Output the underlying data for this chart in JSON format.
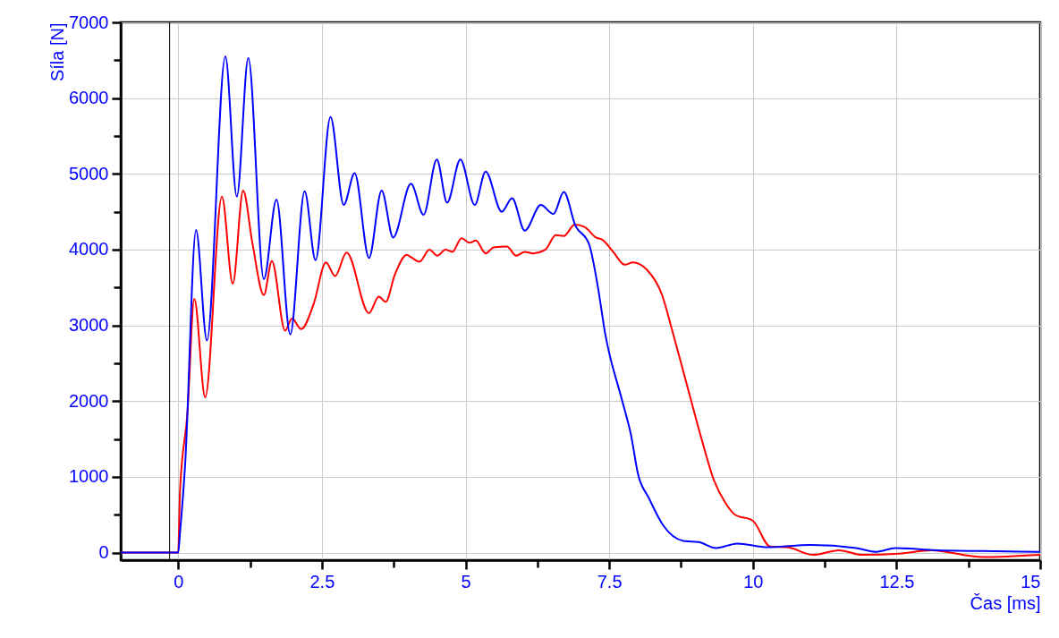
{
  "chart_data": {
    "type": "line",
    "xlabel": "Čas [ms]",
    "ylabel": "Síla [N]",
    "xlim": [
      -1,
      15
    ],
    "ylim": [
      -100,
      7000
    ],
    "xticks": [
      0,
      {
        "value": 1.25,
        "label": null
      },
      2.5,
      {
        "value": 3.75,
        "label": null
      },
      5,
      {
        "value": 6.25,
        "label": null
      },
      7.5,
      {
        "value": 8.75,
        "label": null
      },
      10,
      {
        "value": 11.25,
        "label": null
      },
      12.5,
      {
        "value": 13.75,
        "label": null
      },
      15
    ],
    "yticks": [
      0,
      {
        "value": 500,
        "label": null
      },
      1000,
      {
        "value": 1500,
        "label": null
      },
      2000,
      {
        "value": 2500,
        "label": null
      },
      3000,
      {
        "value": 3500,
        "label": null
      },
      4000,
      {
        "value": 4500,
        "label": null
      },
      5000,
      {
        "value": 5500,
        "label": null
      },
      6000,
      {
        "value": 6500,
        "label": null
      },
      7000
    ],
    "grid": true,
    "legend": false,
    "line_style": "solid",
    "ref_lines": [
      {
        "axis": "x",
        "value": -0.15,
        "color": "#000000"
      }
    ],
    "series": [
      {
        "color": "#ff0000",
        "x": [
          -1,
          0,
          0.03,
          0.16,
          0.28,
          0.47,
          0.76,
          0.95,
          1.13,
          1.29,
          1.49,
          1.63,
          1.86,
          1.98,
          2.14,
          2.36,
          2.57,
          2.73,
          2.93,
          3.32,
          3.49,
          3.61,
          3.77,
          3.98,
          4.05,
          4.2,
          4.37,
          4.51,
          4.65,
          4.77,
          4.93,
          5.07,
          5.18,
          5.35,
          5.49,
          5.72,
          5.88,
          6.03,
          6.17,
          6.39,
          6.57,
          6.71,
          6.9,
          7.07,
          7.27,
          7.38,
          7.57,
          7.77,
          7.91,
          8.16,
          8.42,
          8.59,
          8.85,
          9.1,
          9.32,
          9.52,
          9.69,
          10.0,
          10.3,
          10.6,
          11.05,
          11.5,
          11.9,
          12.6,
          13.1,
          14.0,
          15.0
        ],
        "values": [
          0,
          0,
          790,
          1840,
          3350,
          2050,
          4700,
          3550,
          4780,
          4090,
          3400,
          3850,
          2930,
          3090,
          2950,
          3290,
          3830,
          3650,
          3960,
          3160,
          3380,
          3310,
          3670,
          3930,
          3900,
          3840,
          4000,
          3920,
          4000,
          3970,
          4150,
          4090,
          4120,
          3950,
          4030,
          4040,
          3920,
          3970,
          3950,
          4000,
          4190,
          4180,
          4330,
          4300,
          4160,
          4130,
          3970,
          3800,
          3830,
          3730,
          3400,
          2950,
          2220,
          1520,
          960,
          660,
          500,
          420,
          80,
          70,
          -30,
          30,
          -30,
          -10,
          30,
          -60,
          -30
        ]
      },
      {
        "color": "#0000ff",
        "x": [
          -1,
          0,
          0.03,
          0.12,
          0.31,
          0.5,
          0.82,
          1.02,
          1.22,
          1.49,
          1.71,
          1.95,
          2.2,
          2.39,
          2.65,
          2.88,
          3.07,
          3.32,
          3.54,
          3.74,
          4.05,
          4.27,
          4.5,
          4.68,
          4.91,
          5.16,
          5.35,
          5.63,
          5.81,
          6.03,
          6.31,
          6.53,
          6.71,
          6.91,
          7.15,
          7.3,
          7.43,
          7.72,
          7.88,
          8.0,
          8.19,
          8.43,
          8.82,
          9.05,
          9.36,
          9.73,
          10.26,
          11.0,
          11.8,
          12.15,
          12.48,
          13.2,
          14.0,
          15.0
        ],
        "values": [
          0,
          0,
          250,
          1160,
          4260,
          2800,
          6550,
          4700,
          6530,
          3610,
          4660,
          2880,
          4770,
          3860,
          5750,
          4590,
          5010,
          3890,
          4780,
          4160,
          4870,
          4460,
          5190,
          4620,
          5190,
          4590,
          5030,
          4500,
          4680,
          4250,
          4590,
          4470,
          4760,
          4320,
          4070,
          3520,
          2890,
          2020,
          1550,
          1040,
          720,
          370,
          150,
          140,
          60,
          120,
          70,
          100,
          60,
          10,
          60,
          30,
          20,
          10
        ]
      }
    ]
  }
}
